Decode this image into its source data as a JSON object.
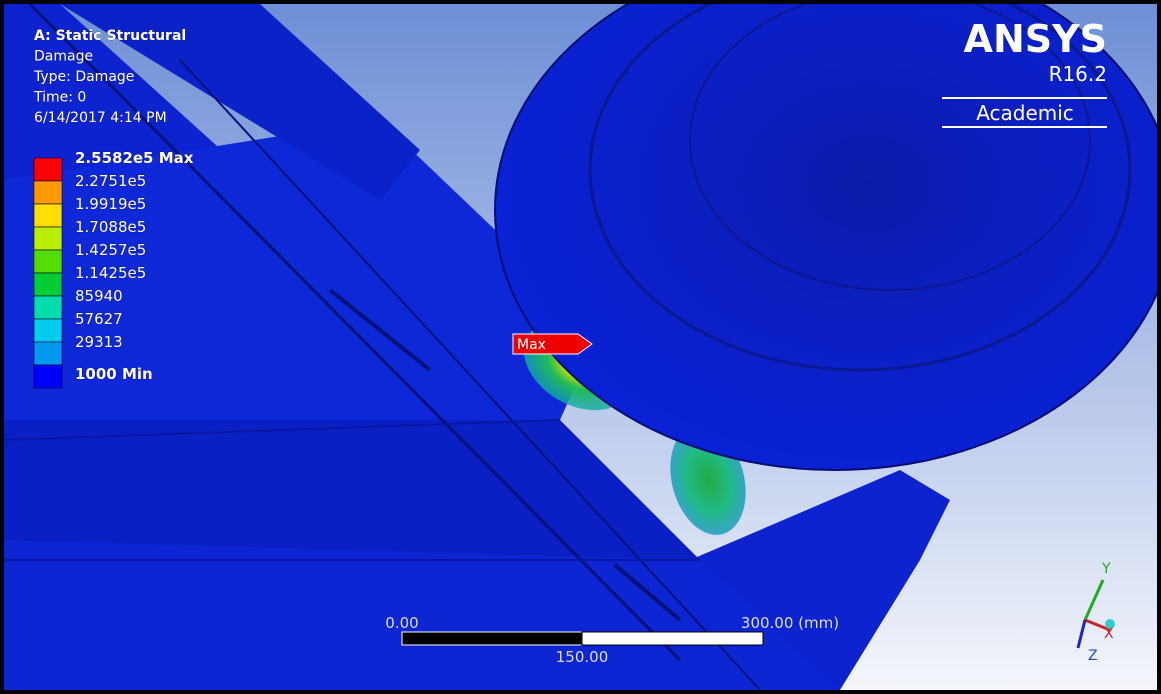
{
  "header": {
    "lines": [
      "A: Static Structural",
      "Damage",
      "Type: Damage",
      "Time: 0",
      "6/14/2017 4:14 PM"
    ]
  },
  "legend": {
    "entries": [
      {
        "label": "2.5582e5 Max",
        "color": "#ff0000"
      },
      {
        "label": "2.2751e5",
        "color": "#ff9900"
      },
      {
        "label": "1.9919e5",
        "color": "#ffdd00"
      },
      {
        "label": "1.7088e5",
        "color": "#bbee00"
      },
      {
        "label": "1.4257e5",
        "color": "#55dd00"
      },
      {
        "label": "1.1425e5",
        "color": "#00cc33"
      },
      {
        "label": "85940",
        "color": "#00ddaa"
      },
      {
        "label": "57627",
        "color": "#00ccee"
      },
      {
        "label": "29313",
        "color": "#0099ee"
      },
      {
        "label": "1000 Min",
        "color": "#0000ff"
      }
    ]
  },
  "logo": {
    "brand": "ANSYS",
    "version": "R16.2",
    "edition": "Academic"
  },
  "probe": {
    "label": "Max"
  },
  "scale_bar": {
    "start": "0.00",
    "end": "300.00 (mm)",
    "middle": "150.00"
  },
  "triad": {
    "x": "X",
    "y": "Y",
    "z": "Z"
  }
}
